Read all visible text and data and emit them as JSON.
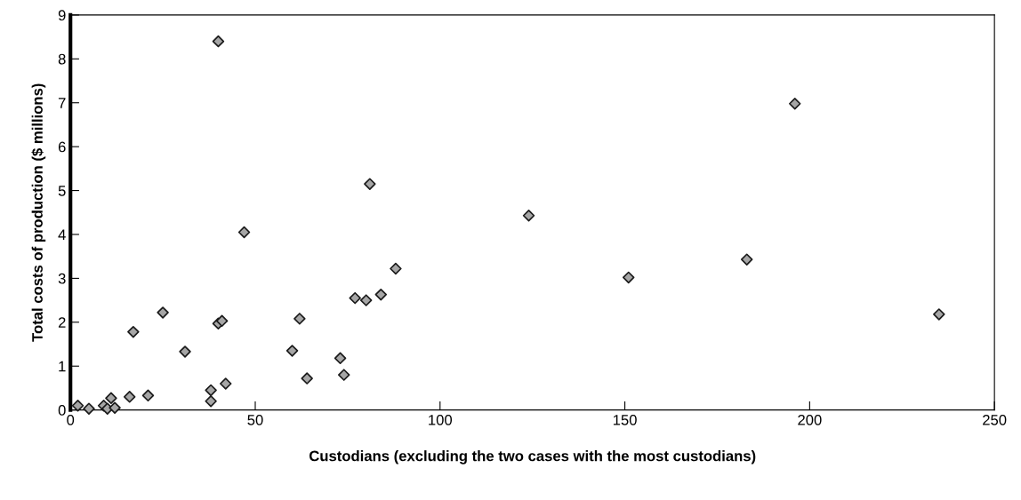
{
  "chart_data": {
    "type": "scatter",
    "xlabel": "Custodians (excluding the two cases with the most custodians)",
    "ylabel": "Total costs of production ($ millions)",
    "x": [
      2,
      5,
      9,
      10,
      11,
      12,
      16,
      17,
      21,
      25,
      31,
      38,
      38,
      40,
      40,
      41,
      42,
      47,
      60,
      62,
      64,
      73,
      74,
      77,
      80,
      81,
      84,
      88,
      124,
      151,
      183,
      196,
      235
    ],
    "series": [
      {
        "color": "#a6a6a6",
        "values": [
          0.1,
          0.03,
          0.1,
          0.03,
          0.27,
          0.05,
          0.3,
          1.78,
          0.33,
          2.22,
          1.33,
          0.2,
          0.45,
          8.4,
          1.97,
          2.03,
          0.6,
          4.05,
          1.35,
          2.08,
          0.72,
          1.18,
          0.8,
          2.55,
          2.5,
          5.15,
          2.63,
          3.22,
          4.43,
          3.02,
          3.43,
          6.98,
          2.18
        ]
      }
    ],
    "xlim": [
      0,
      250
    ],
    "ylim": [
      0,
      9
    ],
    "xticks": [
      0,
      50,
      100,
      150,
      200,
      250
    ],
    "yticks": [
      0,
      1,
      2,
      3,
      4,
      5,
      6,
      7,
      8,
      9
    ],
    "marker": "diamond",
    "grid": false,
    "legend": false
  }
}
